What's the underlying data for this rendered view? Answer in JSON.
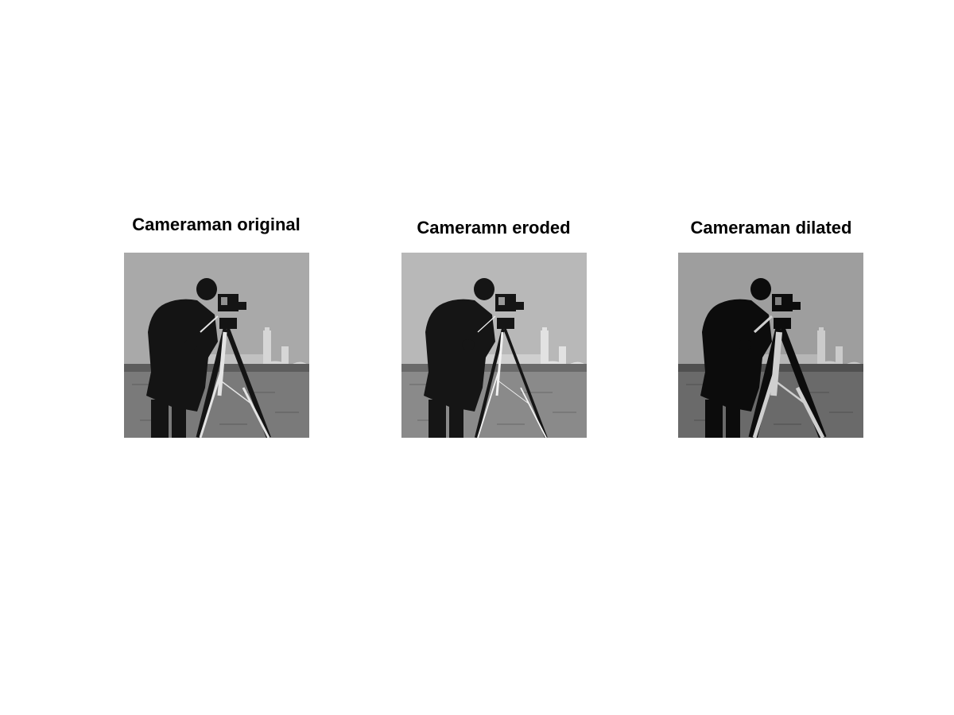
{
  "figure": {
    "panels": [
      {
        "title": "Cameraman original",
        "variant": "original"
      },
      {
        "title": "Cameramn eroded",
        "variant": "eroded"
      },
      {
        "title": "Cameraman dilated",
        "variant": "dilated"
      }
    ]
  },
  "colors": {
    "original": {
      "sky": "#a9a9a9",
      "ground": "#7a7a7a",
      "horizon": "#5d5d5d",
      "figure": "#141414",
      "tripod": "#e4e4e4",
      "building": "#d6d6d6"
    },
    "eroded": {
      "sky": "#b8b8b8",
      "ground": "#8a8a8a",
      "horizon": "#6a6a6a",
      "figure": "#151515",
      "tripod": "#f2f2f2",
      "building": "#e2e2e2"
    },
    "dilated": {
      "sky": "#9e9e9e",
      "ground": "#6a6a6a",
      "horizon": "#505050",
      "figure": "#0c0c0c",
      "tripod": "#cfcfcf",
      "building": "#cbcbcb"
    }
  }
}
